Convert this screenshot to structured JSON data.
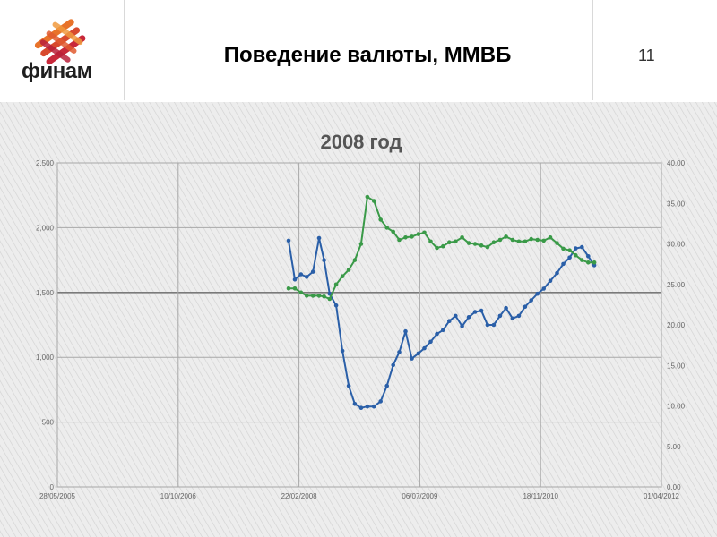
{
  "header": {
    "logo_text": "финам",
    "title": "Поведение валюты, ММВБ",
    "page_number": "11"
  },
  "colors": {
    "left_series": "#2a5fa8",
    "right_series": "#3a9a48",
    "logo_orange": "#e8732a",
    "logo_red": "#c8283a"
  },
  "chart_data": {
    "type": "line",
    "title": "2008 год",
    "xlabel": "",
    "ylabel": "",
    "x_tick_labels": [
      "28/05/2005",
      "10/10/2006",
      "22/02/2008",
      "06/07/2009",
      "18/11/2010",
      "01/04/2012"
    ],
    "x_range": [
      "2005-05-28",
      "2012-04-01"
    ],
    "y_left": {
      "range": [
        0,
        2500
      ],
      "tick_labels": [
        "0",
        "500",
        "1,000",
        "1,500",
        "2,000",
        "2,500"
      ]
    },
    "y_right": {
      "range": [
        0,
        40
      ],
      "tick_labels": [
        "0.00",
        "5.00",
        "10.00",
        "15.00",
        "20.00",
        "25.00",
        "30.00",
        "35.00",
        "40.00"
      ]
    },
    "grid": true,
    "series": [
      {
        "axis": "left",
        "x": [
          "2008-01-10",
          "2008-02-05",
          "2008-03-01",
          "2008-03-25",
          "2008-04-20",
          "2008-05-15",
          "2008-06-05",
          "2008-06-28",
          "2008-07-25",
          "2008-08-20",
          "2008-09-15",
          "2008-10-10",
          "2008-11-05",
          "2008-12-01",
          "2008-12-28",
          "2009-01-25",
          "2009-02-20",
          "2009-03-18",
          "2009-04-12",
          "2009-05-08",
          "2009-06-03",
          "2009-06-30",
          "2009-07-25",
          "2009-08-20",
          "2009-09-15",
          "2009-10-10",
          "2009-11-05",
          "2009-12-01",
          "2009-12-28",
          "2010-01-25",
          "2010-02-20",
          "2010-03-18",
          "2010-04-12",
          "2010-05-08",
          "2010-06-03",
          "2010-06-28",
          "2010-07-25",
          "2010-08-20",
          "2010-09-15",
          "2010-10-10",
          "2010-11-05",
          "2010-12-01",
          "2010-12-28",
          "2011-01-25",
          "2011-02-20",
          "2011-03-18",
          "2011-04-12",
          "2011-05-08",
          "2011-06-03",
          "2011-06-28"
        ],
        "y": [
          1900,
          1600,
          1640,
          1620,
          1660,
          1920,
          1750,
          1490,
          1400,
          1050,
          780,
          640,
          610,
          620,
          620,
          660,
          780,
          940,
          1040,
          1200,
          990,
          1030,
          1070,
          1120,
          1180,
          1210,
          1280,
          1320,
          1240,
          1310,
          1350,
          1360,
          1250,
          1250,
          1320,
          1380,
          1300,
          1320,
          1390,
          1440,
          1490,
          1530,
          1590,
          1650,
          1720,
          1770,
          1840,
          1850,
          1780,
          1710
        ]
      },
      {
        "axis": "right",
        "x": [
          "2008-01-10",
          "2008-02-05",
          "2008-03-01",
          "2008-03-25",
          "2008-04-20",
          "2008-05-15",
          "2008-06-05",
          "2008-06-28",
          "2008-07-25",
          "2008-08-20",
          "2008-09-15",
          "2008-10-10",
          "2008-11-05",
          "2008-12-01",
          "2008-12-28",
          "2009-01-25",
          "2009-02-20",
          "2009-03-18",
          "2009-04-12",
          "2009-05-08",
          "2009-06-03",
          "2009-06-30",
          "2009-07-25",
          "2009-08-20",
          "2009-09-15",
          "2009-10-10",
          "2009-11-05",
          "2009-12-01",
          "2009-12-28",
          "2010-01-25",
          "2010-02-20",
          "2010-03-18",
          "2010-04-12",
          "2010-05-08",
          "2010-06-03",
          "2010-06-28",
          "2010-07-25",
          "2010-08-20",
          "2010-09-15",
          "2010-10-10",
          "2010-11-05",
          "2010-12-01",
          "2010-12-28",
          "2011-01-25",
          "2011-02-20",
          "2011-03-18",
          "2011-04-12",
          "2011-05-08",
          "2011-06-03",
          "2011-06-28"
        ],
        "y": [
          24.5,
          24.5,
          24.0,
          23.6,
          23.6,
          23.6,
          23.5,
          23.2,
          25.0,
          26.0,
          26.8,
          28.0,
          30.0,
          35.8,
          35.3,
          33.0,
          32.0,
          31.5,
          30.5,
          30.8,
          30.9,
          31.2,
          31.4,
          30.3,
          29.5,
          29.7,
          30.2,
          30.3,
          30.8,
          30.1,
          30.0,
          29.8,
          29.6,
          30.2,
          30.5,
          30.9,
          30.5,
          30.3,
          30.3,
          30.6,
          30.5,
          30.4,
          30.8,
          30.1,
          29.4,
          29.2,
          28.6,
          28.0,
          27.7,
          27.7
        ]
      }
    ]
  }
}
